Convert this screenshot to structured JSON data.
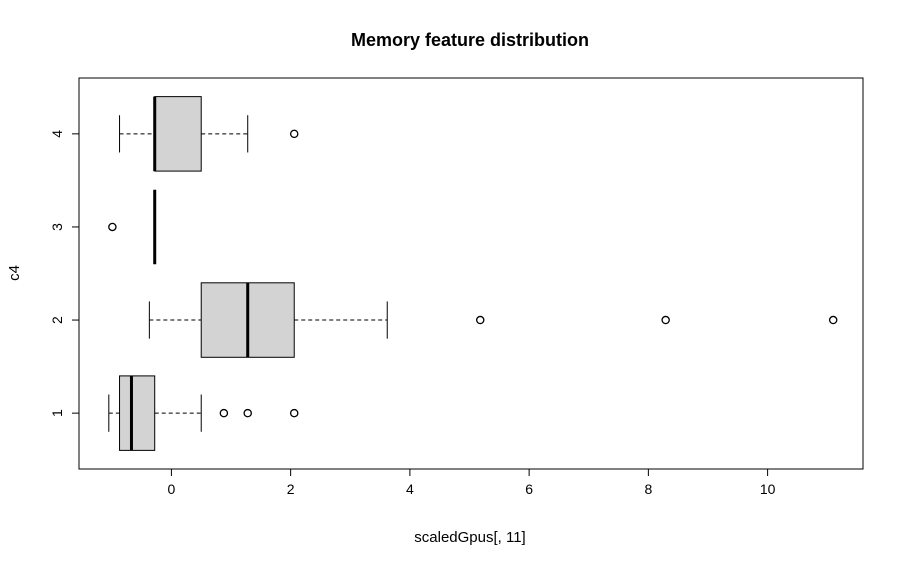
{
  "chart_data": {
    "type": "boxplot",
    "orientation": "horizontal",
    "title": "Memory feature distribution",
    "xlabel": "scaledGpus[, 11]",
    "ylabel": "c4",
    "xlim": [
      -1.55,
      11.6
    ],
    "ylim": [
      0.4,
      4.6
    ],
    "x_ticks": [
      0,
      2,
      4,
      6,
      8,
      10
    ],
    "y_ticks": [
      1,
      2,
      3,
      4
    ],
    "box_fill": "#d3d3d3",
    "series": [
      {
        "group": "1",
        "whisker_low": -1.05,
        "q1": -0.87,
        "median": -0.67,
        "q3": -0.28,
        "whisker_high": 0.5,
        "outliers": [
          0.88,
          1.28,
          2.06
        ]
      },
      {
        "group": "2",
        "whisker_low": -0.37,
        "q1": 0.5,
        "median": 1.28,
        "q3": 2.06,
        "whisker_high": 3.62,
        "outliers": [
          5.18,
          8.29,
          11.1
        ]
      },
      {
        "group": "3",
        "whisker_low": -0.28,
        "q1": -0.28,
        "median": -0.28,
        "q3": -0.28,
        "whisker_high": -0.28,
        "outliers": [
          -0.99
        ]
      },
      {
        "group": "4",
        "whisker_low": -0.87,
        "q1": -0.28,
        "median": -0.28,
        "q3": 0.5,
        "whisker_high": 1.28,
        "outliers": [
          2.06
        ]
      }
    ]
  }
}
